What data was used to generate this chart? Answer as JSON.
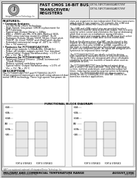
{
  "bg_color": "#d8d8d8",
  "page_bg": "#ffffff",
  "header_bg": "#e0e0e0",
  "logo_bg": "#ffffff",
  "title_left": "FAST CMOS 16-BIT BUS\nTRANSCEIVER/\nREGISTERS",
  "title_right": "IDT74-74FCT166652AT/CT/ST\nIDT74-74FCT166652AT/CT/ST",
  "logo_text": "Integrated Device Technology, Inc.",
  "features_title": "FEATURES:",
  "desc_right_lines": [
    "vices are organized as two independent 8-bit bus transceivers",
    "with 3-state D-type registers. For example, the nCAB and",
    "nCBBA signals control the transceiver functions.",
    "",
    "The nSAB and nSBA control pins are provided to select",
    "either select transfer data to and from output. This is mainly",
    "used for select control and eliminates the typical deskewing",
    "glitch that occurs on a multiplexer during transition.",
    "between stored and real-time data. A LDB input level-select",
    "read time data and a nSAB latch selects stored data.",
    "",
    "Both on the A transceiver of a SAP, can be stored in the",
    "register at high-frequency SAP control/monitoring at the",
    "appropriate clock pins (nLEAB or nLEBA), regardless of",
    "the latch or enable control pins. Passthrough organization",
    "of latch core simplifies layout. All inputs are designed with",
    "hysteresis for improved noise margin.",
    "",
    "The FCT166651A/CT/ST are ideally suited for driving",
    "high-capacitance backplane buses or long interconnects.",
    "These output buffers are designed with never off-disable",
    "capability to allow live insertion of boards when used as",
    "backplane drivers.",
    "",
    "The FCT166652AT/CT/ST have balanced output drive",
    "with a small 0.02 ohm-transition. They offer high drive",
    "current, minimal undershoot, and controlled output fall",
    "times, reducing the need for external series terminating",
    "resistors. The FCT166652A/CT/ST are drop-in replace-",
    "ments for the FCT166651A/CT/ST and HBT 16652 in on",
    "board bus interface applications."
  ],
  "description_title": "DESCRIPTION",
  "desc_left_lines": [
    "The FCT166651A/CT/ST and FCT166652-16-FCT",
    "16-bit registered transceivers are built using advanced dual",
    "metal CMOS technology. These high-speed, low-power de-"
  ],
  "block_diagram_title": "FUNCTIONAL BLOCK DIAGRAM",
  "footer_left": "MILITARY AND COMMERCIAL TEMPERATURE RANGE",
  "footer_right": "AUGUST 1996",
  "footer_trademark": "FAST is a registered trademark of Integrated Device Technology, Inc.",
  "footer_company": "INTEGRATED DEVICE TECHNOLOGY, INC.",
  "footer_code": "DS92-I15P1",
  "left_signals": [
    "nGAB",
    "nGBA",
    "nLEAB",
    "SAB",
    "nLEBA",
    "nSAB"
  ],
  "right_signals": [
    "nGAB",
    "nGBA",
    "nLEAB",
    "SAB",
    "nLEBA",
    "nSAB"
  ],
  "left_bottom_label": "PORT A INTERFACE",
  "left_bottom_label2": "PORT B INTERFACE",
  "right_bottom_label": "PORT B INTERFACE",
  "right_bottom_label2": "PORT A INTERFACE"
}
